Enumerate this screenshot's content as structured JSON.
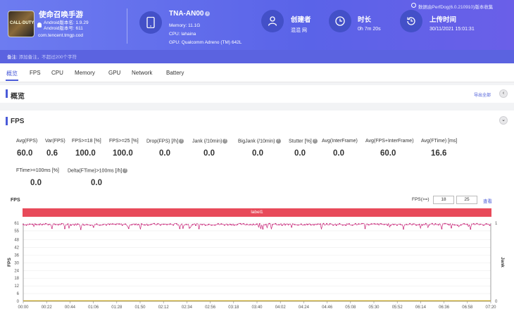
{
  "app": {
    "name": "使命召唤手游",
    "icon_text": "CALL·DUTY",
    "version_line1": "Android版本名: 1.9.29",
    "version_line2": "Android版本号: 611",
    "package": "com.tencent.tmgp.cod"
  },
  "device": {
    "name": "TNA-AN00",
    "memory": "Memory: 11.1G",
    "cpu": "CPU: lahaina",
    "gpu": "GPU: Qualcomm Adreno (TM) 642L"
  },
  "creator": {
    "label": "创建者",
    "value": "混混 网"
  },
  "duration": {
    "label": "时长",
    "value": "0h 7m 20s"
  },
  "upload": {
    "label": "上传时间",
    "value": "30/11/2021 15:01:31"
  },
  "data_source": "数据由PerfDog(6.0.210910)版本收集",
  "note": {
    "label": "备注:",
    "placeholder": "添加备注，不超过200个字符"
  },
  "tabs": [
    "概览",
    "FPS",
    "CPU",
    "Memory",
    "GPU",
    "Network",
    "Battery"
  ],
  "overview": {
    "title": "概览",
    "export_label": "导出全部"
  },
  "fps_section": {
    "title": "FPS",
    "metrics_row1": [
      {
        "label": "Avg(FPS)",
        "value": "60.0"
      },
      {
        "label": "Var(FPS)",
        "value": "0.6"
      },
      {
        "label": "FPS>=18 [%]",
        "value": "100.0"
      },
      {
        "label": "FPS>=25 [%]",
        "value": "100.0"
      },
      {
        "label": "Drop(FPS) [/h]",
        "value": "0.0"
      },
      {
        "label": "Jank (/10min)",
        "value": "0.0"
      },
      {
        "label": "BigJank (/10min)",
        "value": "0.0"
      },
      {
        "label": "Stutter [%]",
        "value": "0.0"
      },
      {
        "label": "Avg(InterFrame)",
        "value": "0.0"
      },
      {
        "label": "Avg(FPS+InterFrame)",
        "value": "60.0"
      },
      {
        "label": "Avg(FTime) [ms]",
        "value": "16.6"
      }
    ],
    "metrics_row2": [
      {
        "label": "FTime>=100ms [%]",
        "value": "0.0"
      },
      {
        "label": "Delta(FTime)>100ms [/h]",
        "value": "0.0"
      }
    ],
    "chart_title": "FPS",
    "filter_label": "FPS(>=)",
    "filter_min": "18",
    "filter_max": "25",
    "query_label": "查看",
    "label_bar": "label1"
  },
  "colors": {
    "header_start": "#6d7cf0",
    "accent": "#4a5bd8",
    "label_bar": "#e84a5a",
    "fps_line": "#c8287a",
    "jank_line": "#c8a000"
  },
  "chart_data": {
    "type": "line",
    "xlabel": "",
    "ylabel": "FPS",
    "y2label": "Jank",
    "ylim": [
      0,
      61
    ],
    "y_ticks": [
      0,
      6,
      12,
      18,
      24,
      30,
      36,
      42,
      48,
      55,
      61
    ],
    "y2lim": [
      0,
      1
    ],
    "y2_ticks": [
      0,
      1
    ],
    "x_ticks": [
      "00:00",
      "00:22",
      "00:44",
      "01:06",
      "01:28",
      "01:50",
      "02:12",
      "02:34",
      "02:56",
      "03:18",
      "03:40",
      "04:02",
      "04:24",
      "04:46",
      "05:08",
      "05:30",
      "05:52",
      "06:14",
      "06:36",
      "06:58",
      "07:20"
    ],
    "series": [
      {
        "name": "FPS",
        "type": "line",
        "base": 60,
        "dip_range": [
          56,
          61
        ],
        "points": 440
      },
      {
        "name": "Jank",
        "type": "line",
        "constant": 0
      }
    ]
  }
}
